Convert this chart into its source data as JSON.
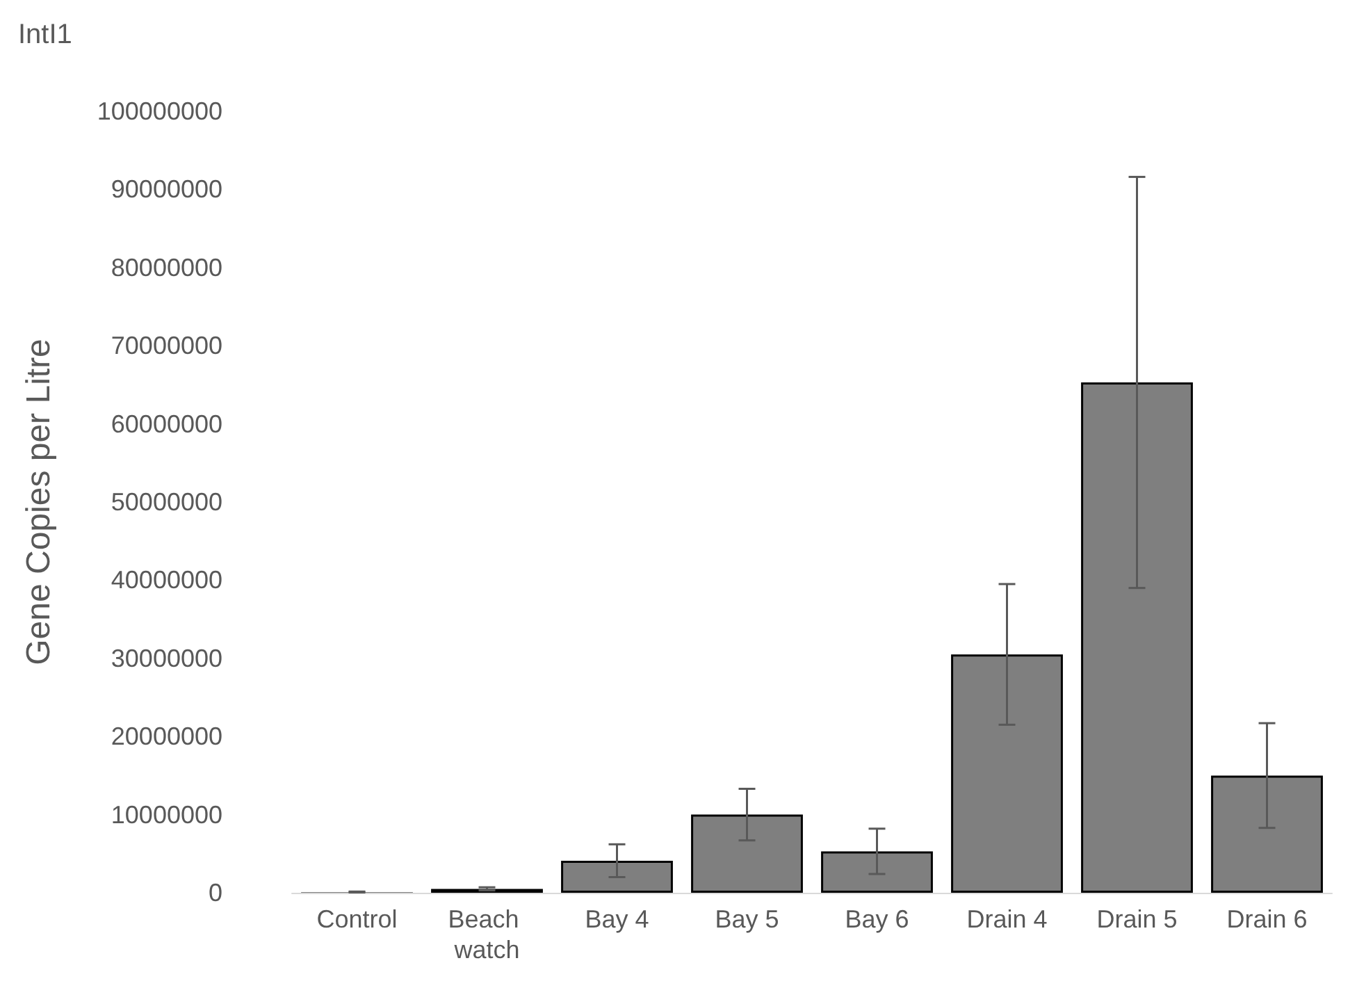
{
  "chart_data": {
    "type": "bar",
    "title": "IntI1",
    "ylabel": "Gene Copies per Litre",
    "categories": [
      "Control",
      "Beach watch",
      "Bay 4",
      "Bay 5",
      "Bay 6",
      "Drain 4",
      "Drain 5",
      "Drain 6"
    ],
    "values": [
      100000,
      500000,
      4100000,
      10000000,
      5300000,
      30500000,
      65300000,
      15000000
    ],
    "errors": [
      50000,
      200000,
      2100000,
      3300000,
      2900000,
      9000000,
      26300000,
      6700000
    ],
    "color": "#7f7f7f",
    "ylim": [
      0,
      100000000
    ],
    "yticks": [
      0,
      10000000,
      20000000,
      30000000,
      40000000,
      50000000,
      60000000,
      70000000,
      80000000,
      90000000,
      100000000
    ],
    "grid": false
  }
}
